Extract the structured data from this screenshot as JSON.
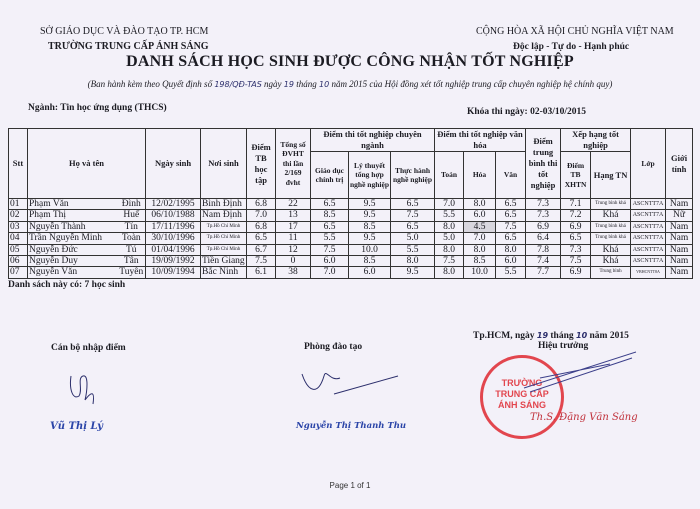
{
  "header": {
    "department": "SỞ GIÁO DỤC VÀ ĐÀO TẠO TP. HCM",
    "school": "TRƯỜNG TRUNG CẤP ÁNH SÁNG",
    "republic": "CỘNG HÒA XÃ HỘI CHỦ NGHĨA VIỆT NAM",
    "motto": "Độc lập - Tự do - Hạnh phúc"
  },
  "title": "DANH SÁCH HỌC SINH ĐƯỢC CÔNG NHẬN TỐT NGHIỆP",
  "subtitle": {
    "prefix": "(Ban hành kèm theo Quyết định số ",
    "decision_no": "198/QĐ-TAS",
    "mid1": " ngày ",
    "day": "19",
    "mid2": " tháng ",
    "month": "10",
    "suffix": " năm 2015 của Hội đồng xét tốt nghiệp trung cấp chuyên nghiệp hệ chính quy)"
  },
  "major": "Ngành: Tin học ứng dụng (THCS)",
  "exam_date": "Khóa thi ngày: 02-03/10/2015",
  "table": {
    "headers": {
      "stt": "Stt",
      "name": "Họ và tên",
      "dob": "Ngày sinh",
      "pob": "Nơi sinh",
      "gpa": "Điểm TB học tập",
      "credits": "Tổng số ĐVHT thi lần 2/169 đvht",
      "major_group": "Điểm thi tốt nghiệp chuyên ngành",
      "politics": "Giáo dục chính trị",
      "theory": "Lý thuyết tổng hợp nghề nghiệp",
      "practice": "Thực hành nghề nghiệp",
      "culture_group": "Điểm thi tốt nghiệp văn hóa",
      "math": "Toán",
      "chem": "Hóa",
      "lit": "Văn",
      "avg": "Điểm trung bình thi tốt nghiệp",
      "rank_group": "Xếp hạng tốt nghiệp",
      "rank_score": "Điểm TB XHTN",
      "rank": "Hạng TN",
      "class": "Lớp",
      "gender": "Giới tính"
    },
    "rows": [
      {
        "stt": "01",
        "surname": "Phạm Văn",
        "given": "Đình",
        "dob": "12/02/1995",
        "pob": "Bình Định",
        "gpa": "6.8",
        "credits": "22",
        "politics": "6.5",
        "theory": "9.5",
        "practice": "6.5",
        "math": "7.0",
        "chem": "8.0",
        "lit": "6.5",
        "avg": "7.3",
        "rank_score": "7.1",
        "rank": "Trung bình khá",
        "class": "ASCNTT7A",
        "gender": "Nam"
      },
      {
        "stt": "02",
        "surname": "Phạm Thị",
        "given": "Huế",
        "dob": "06/10/1988",
        "pob": "Nam Định",
        "gpa": "7.0",
        "credits": "13",
        "politics": "8.5",
        "theory": "9.5",
        "practice": "7.5",
        "math": "5.5",
        "chem": "6.0",
        "lit": "6.5",
        "avg": "7.3",
        "rank_score": "7.2",
        "rank": "Khá",
        "class": "ASCNTT7A",
        "gender": "Nữ"
      },
      {
        "stt": "03",
        "surname": "Nguyễn Thành",
        "given": "Tín",
        "dob": "17/11/1996",
        "pob": "Tp.Hồ Chí Minh",
        "gpa": "6.8",
        "credits": "17",
        "politics": "6.5",
        "theory": "8.5",
        "practice": "6.5",
        "math": "8.0",
        "chem": "4.5",
        "lit": "7.5",
        "avg": "6.9",
        "rank_score": "6.9",
        "rank": "Trung bình khá",
        "class": "ASCNTT7A",
        "gender": "Nam"
      },
      {
        "stt": "04",
        "surname": "Trần Nguyễn Minh",
        "given": "Toàn",
        "dob": "30/10/1996",
        "pob": "Tp.Hồ Chí Minh",
        "gpa": "6.5",
        "credits": "11",
        "politics": "5.5",
        "theory": "9.5",
        "practice": "5.0",
        "math": "5.0",
        "chem": "7.0",
        "lit": "6.5",
        "avg": "6.4",
        "rank_score": "6.5",
        "rank": "Trung bình khá",
        "class": "ASCNTT7A",
        "gender": "Nam"
      },
      {
        "stt": "05",
        "surname": "Nguyễn Đức",
        "given": "Tú",
        "dob": "01/04/1996",
        "pob": "Tp.Hồ Chí Minh",
        "gpa": "6.7",
        "credits": "12",
        "politics": "7.5",
        "theory": "10.0",
        "practice": "5.5",
        "math": "8.0",
        "chem": "8.0",
        "lit": "8.0",
        "avg": "7.8",
        "rank_score": "7.3",
        "rank": "Khá",
        "class": "ASCNTT7A",
        "gender": "Nam"
      },
      {
        "stt": "06",
        "surname": "Nguyễn Duy",
        "given": "Tân",
        "dob": "19/09/1992",
        "pob": "Tiền Giang",
        "gpa": "7.5",
        "credits": "0",
        "politics": "6.0",
        "theory": "8.5",
        "practice": "8.0",
        "math": "7.5",
        "chem": "8.5",
        "lit": "6.0",
        "avg": "7.4",
        "rank_score": "7.5",
        "rank": "Khá",
        "class": "ASCNTT7A",
        "gender": "Nam"
      },
      {
        "stt": "07",
        "surname": "Nguyễn Văn",
        "given": "Tuyên",
        "dob": "10/09/1994",
        "pob": "Bắc Ninh",
        "gpa": "6.1",
        "credits": "38",
        "politics": "7.0",
        "theory": "6.0",
        "practice": "9.5",
        "math": "8.0",
        "chem": "10.0",
        "lit": "5.5",
        "avg": "7.7",
        "rank_score": "6.9",
        "rank": "Trung bình",
        "class": "VBHCNTT8A",
        "gender": "Nam"
      }
    ]
  },
  "count_text": "Danh sách này có: 7 học sinh",
  "signatures": {
    "entry_officer_title": "Cán bộ nhập điểm",
    "entry_officer_name": "Vũ Thị Lý",
    "training_office_title": "Phòng đào tạo",
    "training_office_name": "Nguyễn Thị Thanh Thu",
    "date_prefix": "Tp.HCM, ngày ",
    "date_day": "19",
    "date_mid": " tháng ",
    "date_month": "10",
    "date_suffix": " năm 2015",
    "principal_title": "Hiệu trưởng",
    "principal_name": "Th.S. Đặng Văn Sáng",
    "stamp_text": "TRƯỜNG TRUNG CẤP ÁNH SÁNG"
  },
  "footer": {
    "page": "Page 1 of 1"
  },
  "colors": {
    "paper": "#f3f1f9",
    "ink": "#1b1b22",
    "signature_blue": "#2b45a8",
    "stamp_red": "#e2464e"
  }
}
